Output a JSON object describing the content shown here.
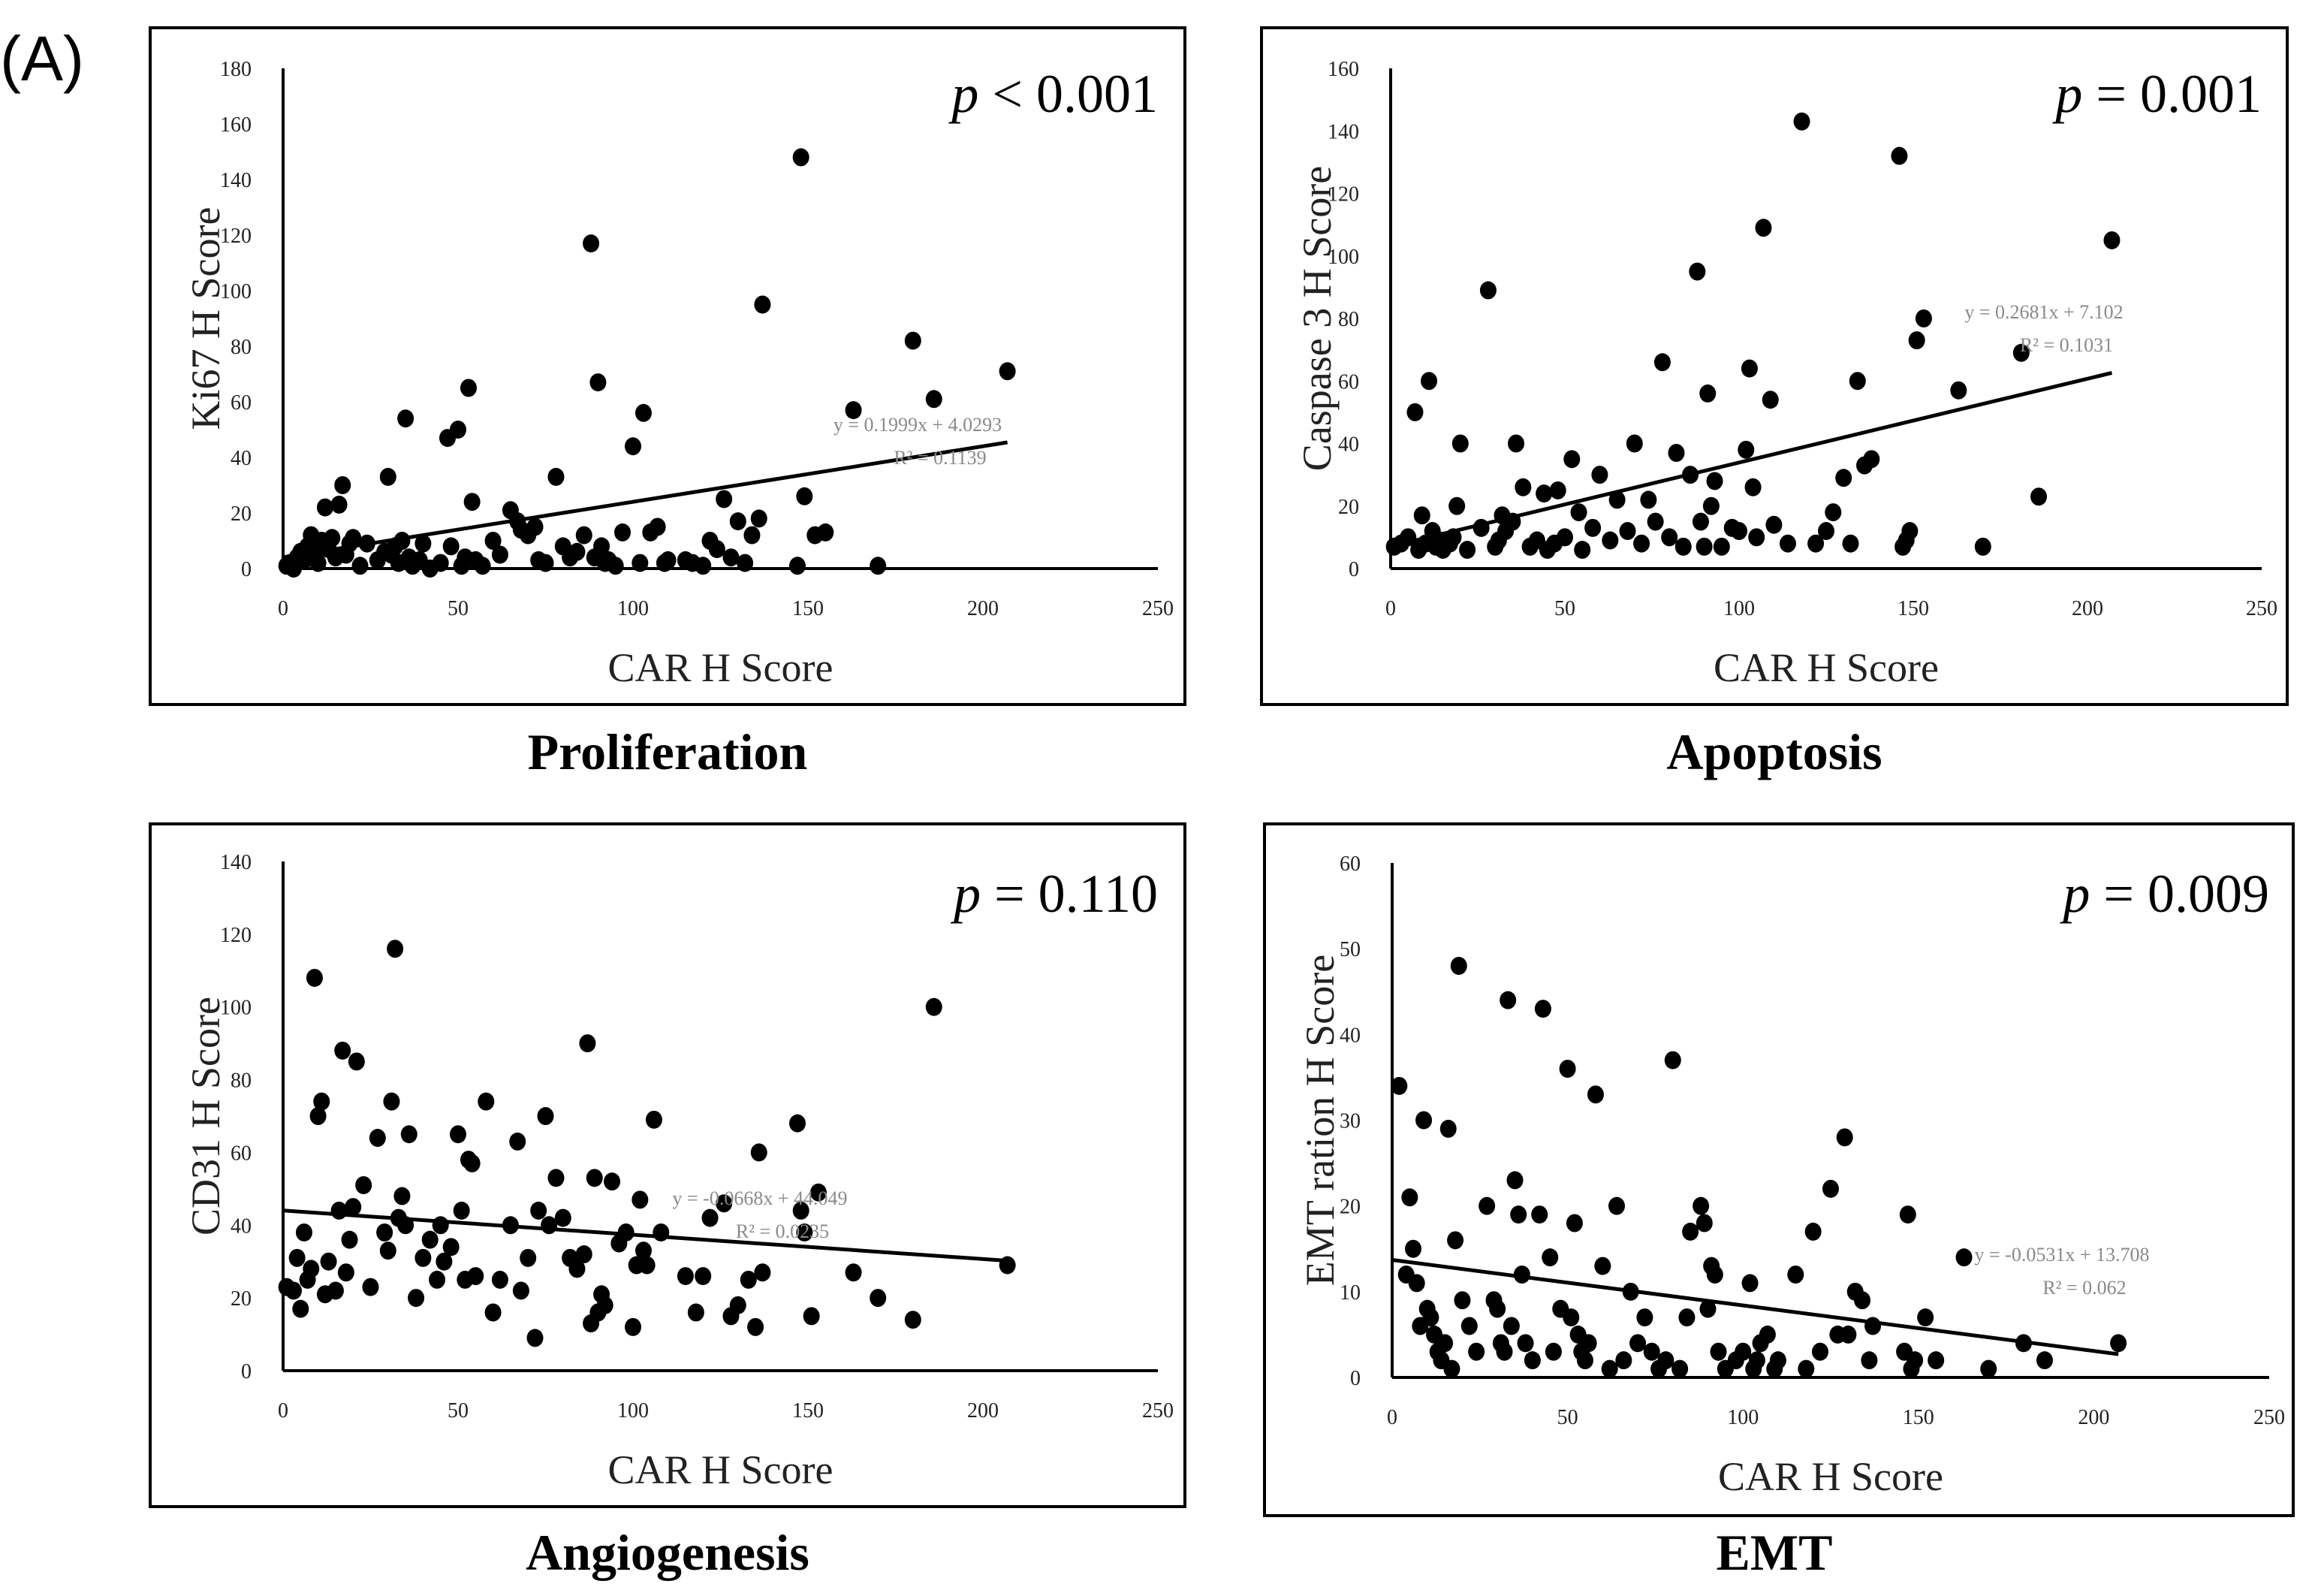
{
  "figure_label": "(A)",
  "chart_data": [
    {
      "id": "proliferation",
      "type": "scatter",
      "caption": "Proliferation",
      "xlabel": "CAR H Score",
      "ylabel": "Ki67 H Score",
      "p_prefix": "p",
      "p_text": " < 0.001",
      "xlim": [
        0,
        250
      ],
      "ylim": [
        0,
        180
      ],
      "xticks": [
        "0",
        "50",
        "100",
        "150",
        "200",
        "250"
      ],
      "yticks": [
        "0",
        "20",
        "40",
        "60",
        "80",
        "100",
        "120",
        "140",
        "160",
        "180"
      ],
      "trendline": {
        "slope": 0.1999,
        "intercept": 4.0293,
        "x_range": [
          0,
          207
        ]
      },
      "equation": "y = 0.1999x + 4.0293",
      "r2": "R² = 0.1139",
      "x": [
        1,
        2,
        3,
        4,
        5,
        6,
        7,
        8,
        9,
        10,
        11,
        12,
        13,
        14,
        15,
        16,
        17,
        18,
        19,
        20,
        22,
        24,
        27,
        29,
        30,
        31,
        32,
        33,
        34,
        35,
        36,
        37,
        39,
        40,
        42,
        45,
        47,
        48,
        50,
        51,
        52,
        53,
        54,
        55,
        57,
        60,
        62,
        65,
        67,
        68,
        70,
        72,
        73,
        75,
        78,
        80,
        82,
        84,
        86,
        88,
        89,
        90,
        91,
        92,
        93,
        95,
        97,
        100,
        102,
        103,
        105,
        107,
        109,
        110,
        115,
        117,
        120,
        122,
        124,
        126,
        128,
        130,
        132,
        134,
        136,
        137,
        147,
        148,
        149,
        152,
        155,
        163,
        170,
        180,
        186,
        207
      ],
      "y": [
        1,
        2,
        0,
        4,
        6,
        3,
        8,
        12,
        5,
        2,
        10,
        22,
        7,
        11,
        4,
        23,
        30,
        5,
        9,
        11,
        1,
        9,
        3,
        6,
        33,
        5,
        8,
        2,
        10,
        54,
        4,
        1,
        3,
        9,
        0,
        2,
        47,
        8,
        50,
        1,
        4,
        65,
        24,
        3,
        1,
        10,
        5,
        21,
        17,
        14,
        12,
        15,
        3,
        2,
        33,
        8,
        4,
        6,
        12,
        117,
        4,
        67,
        8,
        2,
        3,
        1,
        13,
        44,
        2,
        56,
        13,
        15,
        2,
        3,
        3,
        2,
        1,
        10,
        7,
        25,
        4,
        17,
        2,
        12,
        18,
        95,
        1,
        148,
        26,
        12,
        13,
        57,
        1,
        82,
        61,
        71
      ]
    },
    {
      "id": "apoptosis",
      "type": "scatter",
      "caption": "Apoptosis",
      "xlabel": "CAR H Score",
      "ylabel": "Caspase 3 H Score",
      "p_prefix": "p",
      "p_text": " = 0.001",
      "xlim": [
        0,
        250
      ],
      "ylim": [
        0,
        160
      ],
      "xticks": [
        "0",
        "50",
        "100",
        "150",
        "200",
        "250"
      ],
      "yticks": [
        "0",
        "20",
        "40",
        "60",
        "80",
        "100",
        "120",
        "140",
        "160"
      ],
      "trendline": {
        "slope": 0.2681,
        "intercept": 7.102,
        "x_range": [
          0,
          207
        ]
      },
      "equation": "y = 0.2681x + 7.102",
      "r2": "R² = 0.1031",
      "x": [
        1,
        3,
        5,
        7,
        8,
        9,
        10,
        11,
        12,
        13,
        14,
        15,
        17,
        18,
        19,
        20,
        22,
        26,
        28,
        30,
        31,
        32,
        33,
        35,
        36,
        38,
        40,
        42,
        44,
        45,
        47,
        48,
        50,
        52,
        54,
        55,
        58,
        60,
        63,
        65,
        68,
        70,
        72,
        74,
        76,
        78,
        80,
        82,
        84,
        86,
        88,
        89,
        90,
        91,
        92,
        93,
        95,
        98,
        100,
        102,
        103,
        104,
        105,
        107,
        109,
        110,
        114,
        118,
        122,
        125,
        127,
        130,
        132,
        134,
        136,
        138,
        146,
        147,
        148,
        149,
        151,
        153,
        163,
        170,
        181,
        186,
        207
      ],
      "y": [
        7,
        8,
        10,
        50,
        6,
        17,
        8,
        60,
        12,
        7,
        9,
        6,
        8,
        10,
        20,
        40,
        6,
        13,
        89,
        7,
        9,
        17,
        12,
        15,
        40,
        26,
        7,
        9,
        24,
        6,
        8,
        25,
        10,
        35,
        18,
        6,
        13,
        30,
        9,
        22,
        12,
        40,
        8,
        22,
        15,
        66,
        10,
        37,
        7,
        30,
        95,
        15,
        7,
        56,
        20,
        28,
        7,
        13,
        12,
        38,
        64,
        26,
        10,
        109,
        54,
        14,
        8,
        143,
        8,
        12,
        18,
        29,
        8,
        60,
        33,
        35,
        132,
        7,
        9,
        12,
        73,
        80,
        57,
        7,
        69,
        23,
        105
      ]
    },
    {
      "id": "angiogenesis",
      "type": "scatter",
      "caption": "Angiogenesis",
      "xlabel": "CAR H Score",
      "ylabel": "CD31 H Score",
      "p_prefix": "p",
      "p_text": " = 0.110",
      "xlim": [
        0,
        250
      ],
      "ylim": [
        0,
        140
      ],
      "xticks": [
        "0",
        "50",
        "100",
        "150",
        "200",
        "250"
      ],
      "yticks": [
        "0",
        "20",
        "40",
        "60",
        "80",
        "100",
        "120",
        "140"
      ],
      "trendline": {
        "slope": -0.0668,
        "intercept": 44.049,
        "x_range": [
          0,
          207
        ]
      },
      "equation": "y = -0.0668x + 44.049",
      "r2": "R² = 0.0235",
      "x": [
        1,
        3,
        4,
        5,
        6,
        7,
        8,
        9,
        10,
        11,
        12,
        13,
        15,
        16,
        17,
        18,
        19,
        20,
        21,
        23,
        25,
        27,
        29,
        30,
        31,
        32,
        33,
        34,
        35,
        36,
        38,
        40,
        42,
        44,
        45,
        46,
        48,
        50,
        51,
        52,
        53,
        54,
        55,
        58,
        60,
        62,
        65,
        67,
        68,
        70,
        72,
        73,
        75,
        76,
        78,
        80,
        82,
        84,
        86,
        87,
        88,
        89,
        90,
        91,
        92,
        94,
        96,
        98,
        100,
        101,
        102,
        103,
        104,
        106,
        108,
        115,
        118,
        120,
        122,
        126,
        128,
        130,
        133,
        135,
        136,
        137,
        147,
        148,
        149,
        151,
        153,
        163,
        170,
        180,
        186,
        207
      ],
      "y": [
        23,
        22,
        31,
        17,
        38,
        25,
        28,
        108,
        70,
        74,
        21,
        30,
        22,
        44,
        88,
        27,
        36,
        45,
        85,
        51,
        23,
        64,
        38,
        33,
        74,
        116,
        42,
        48,
        40,
        65,
        20,
        31,
        36,
        25,
        40,
        30,
        34,
        65,
        44,
        25,
        58,
        57,
        26,
        74,
        16,
        25,
        40,
        63,
        22,
        31,
        9,
        44,
        70,
        40,
        53,
        42,
        31,
        28,
        32,
        90,
        13,
        53,
        16,
        21,
        18,
        52,
        35,
        38,
        12,
        29,
        47,
        33,
        29,
        69,
        38,
        26,
        16,
        26,
        42,
        46,
        15,
        18,
        25,
        12,
        60,
        27,
        68,
        44,
        38,
        15,
        49,
        27,
        20,
        14,
        100,
        29
      ]
    },
    {
      "id": "emt",
      "type": "scatter",
      "caption": "EMT",
      "xlabel": "CAR H Score",
      "ylabel": "EMT ration H Score",
      "p_prefix": "p",
      "p_text": " = 0.009",
      "xlim": [
        0,
        250
      ],
      "ylim": [
        0,
        60
      ],
      "xticks": [
        "0",
        "50",
        "100",
        "150",
        "200",
        "250"
      ],
      "yticks": [
        "0",
        "10",
        "20",
        "30",
        "40",
        "50",
        "60"
      ],
      "trendline": {
        "slope": -0.0531,
        "intercept": 13.708,
        "x_range": [
          0,
          207
        ]
      },
      "equation": "y = -0.0531x + 13.708",
      "r2": "R² = 0.062",
      "x": [
        2,
        4,
        5,
        6,
        7,
        8,
        9,
        10,
        11,
        12,
        13,
        14,
        15,
        16,
        17,
        18,
        19,
        20,
        22,
        24,
        27,
        29,
        30,
        31,
        32,
        33,
        34,
        35,
        36,
        37,
        38,
        40,
        42,
        43,
        45,
        46,
        48,
        50,
        51,
        52,
        53,
        54,
        55,
        56,
        58,
        60,
        62,
        64,
        66,
        68,
        70,
        72,
        74,
        76,
        78,
        80,
        82,
        84,
        85,
        88,
        89,
        90,
        91,
        92,
        93,
        95,
        98,
        100,
        102,
        103,
        104,
        105,
        107,
        109,
        110,
        115,
        118,
        120,
        122,
        125,
        127,
        129,
        130,
        132,
        134,
        136,
        137,
        146,
        147,
        148,
        149,
        152,
        155,
        163,
        170,
        180,
        186,
        207
      ],
      "y": [
        34,
        12,
        21,
        15,
        11,
        6,
        30,
        8,
        7,
        5,
        3,
        2,
        4,
        29,
        1,
        16,
        48,
        9,
        6,
        3,
        20,
        9,
        8,
        4,
        3,
        44,
        6,
        23,
        19,
        12,
        4,
        2,
        19,
        43,
        14,
        3,
        8,
        36,
        7,
        18,
        5,
        3,
        2,
        4,
        33,
        13,
        1,
        20,
        2,
        10,
        4,
        7,
        3,
        1,
        2,
        37,
        1,
        7,
        17,
        20,
        18,
        8,
        13,
        12,
        3,
        1,
        2,
        3,
        11,
        1,
        2,
        4,
        5,
        1,
        2,
        12,
        1,
        17,
        3,
        22,
        5,
        28,
        5,
        10,
        9,
        2,
        6,
        3,
        19,
        1,
        2,
        7,
        2,
        14,
        1,
        4,
        2,
        4
      ]
    }
  ]
}
